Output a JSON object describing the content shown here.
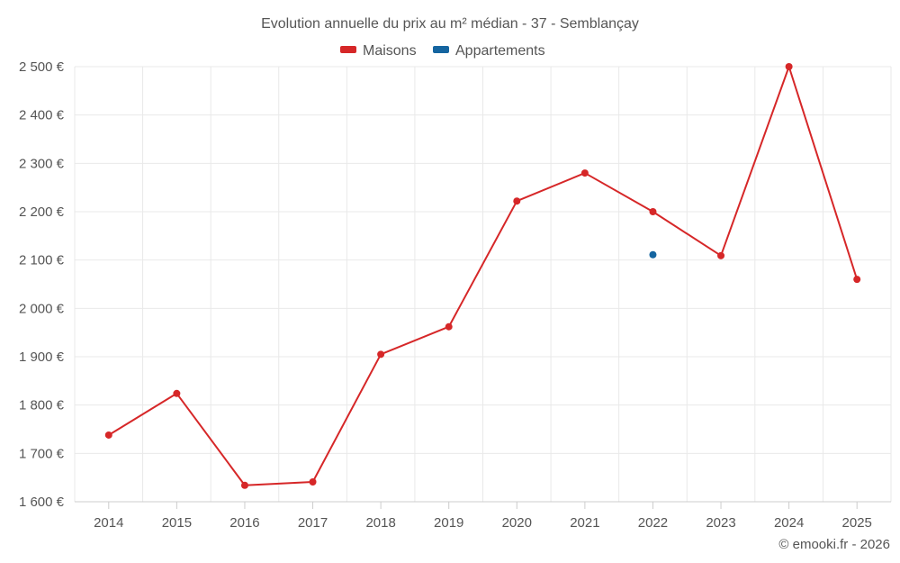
{
  "chart_data": {
    "type": "line",
    "title": "Evolution annuelle du prix au m² médian - 37 - Semblançay",
    "categories": [
      "2014",
      "2015",
      "2016",
      "2017",
      "2018",
      "2019",
      "2020",
      "2021",
      "2022",
      "2023",
      "2024",
      "2025"
    ],
    "series": [
      {
        "name": "Maisons",
        "color": "#d62728",
        "values": [
          1738,
          1824,
          1634,
          1641,
          1905,
          1962,
          2222,
          2280,
          2200,
          2109,
          2500,
          2060
        ]
      },
      {
        "name": "Appartements",
        "color": "#1565a0",
        "values": [
          null,
          null,
          null,
          null,
          null,
          null,
          null,
          null,
          2111,
          null,
          null,
          null
        ]
      }
    ],
    "ylim": [
      1600,
      2500
    ],
    "yticks": [
      "1 600 €",
      "1 700 €",
      "1 800 €",
      "1 900 €",
      "2 000 €",
      "2 100 €",
      "2 200 €",
      "2 300 €",
      "2 400 €",
      "2 500 €"
    ],
    "ytick_values": [
      1600,
      1700,
      1800,
      1900,
      2000,
      2100,
      2200,
      2300,
      2400,
      2500
    ],
    "xlabel": "",
    "ylabel": "",
    "grid": true,
    "legend_position": "top-center"
  },
  "credit": "© emooki.fr - 2026"
}
